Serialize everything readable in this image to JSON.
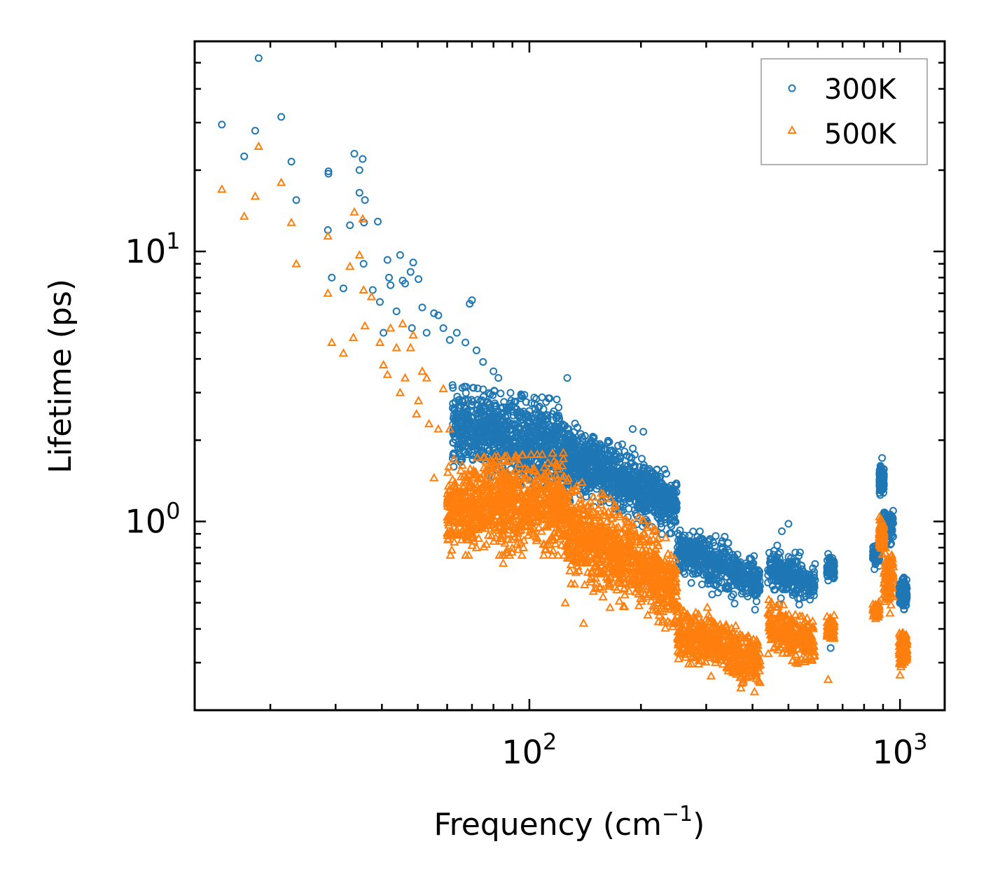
{
  "chart_data": {
    "type": "scatter",
    "xscale": "log",
    "yscale": "log",
    "xlabel": "Frequency (cm",
    "xlabel_sup": "−1",
    "xlabel_suffix": ")",
    "ylabel": "Lifetime (ps)",
    "xlim": [
      12.5,
      1320
    ],
    "ylim": [
      0.2,
      60
    ],
    "x_major_ticks": [
      {
        "value": 100,
        "base": "10",
        "exp": "2"
      },
      {
        "value": 1000,
        "base": "10",
        "exp": "3"
      }
    ],
    "y_major_ticks": [
      {
        "value": 1,
        "base": "10",
        "exp": "0"
      },
      {
        "value": 10,
        "base": "10",
        "exp": "1"
      }
    ],
    "legend_position": "top-right",
    "series": [
      {
        "name": "300K",
        "marker": "circle",
        "color": "#1f77b4",
        "outliers": [
          [
            14.8,
            29.5
          ],
          [
            17.0,
            22.5
          ],
          [
            18.2,
            28.0
          ],
          [
            18.6,
            52.0
          ],
          [
            21.4,
            31.5
          ],
          [
            22.8,
            21.5
          ],
          [
            23.5,
            15.5
          ],
          [
            28.7,
            19.8
          ],
          [
            28.7,
            19.4
          ],
          [
            28.6,
            12.0
          ],
          [
            29.3,
            8.0
          ],
          [
            31.5,
            7.3
          ],
          [
            32.8,
            12.5
          ],
          [
            33.7,
            23.0
          ],
          [
            34.8,
            20.0
          ],
          [
            34.8,
            16.5
          ],
          [
            35.5,
            22.0
          ],
          [
            36.0,
            15.5
          ],
          [
            35.8,
            12.8
          ],
          [
            35.7,
            9.0
          ],
          [
            37.8,
            7.2
          ],
          [
            39.0,
            12.9
          ],
          [
            39.5,
            6.5
          ],
          [
            40.4,
            5.0
          ],
          [
            41.4,
            9.3
          ],
          [
            41.8,
            8.0
          ],
          [
            42.2,
            7.5
          ],
          [
            43.8,
            6.0
          ],
          [
            44.8,
            9.7
          ],
          [
            45.5,
            7.8
          ],
          [
            46.2,
            7.6
          ],
          [
            47.8,
            8.4
          ],
          [
            48.6,
            9.1
          ],
          [
            48.2,
            5.2
          ],
          [
            50.2,
            7.9
          ],
          [
            51.4,
            6.2
          ],
          [
            52.8,
            5.0
          ],
          [
            55.3,
            5.9
          ],
          [
            56.8,
            5.8
          ],
          [
            58.6,
            5.2
          ],
          [
            61.0,
            4.7
          ],
          [
            63.7,
            5.0
          ],
          [
            67.2,
            4.6
          ],
          [
            69.0,
            6.4
          ],
          [
            70.0,
            6.6
          ],
          [
            72.0,
            4.3
          ],
          [
            75.0,
            3.9
          ],
          [
            80.0,
            3.6
          ],
          [
            82.5,
            3.4
          ],
          [
            126.5,
            3.4
          ],
          [
            190.0,
            2.2
          ],
          [
            203.0,
            2.15
          ],
          [
            208.0,
            1.55
          ],
          [
            228.0,
            1.3
          ],
          [
            245.0,
            1.0
          ],
          [
            480.0,
            0.92
          ],
          [
            500.0,
            0.98
          ],
          [
            650.0,
            0.34
          ]
        ],
        "clusters": [
          {
            "x": [
              62,
              125
            ],
            "y_start": [
              1.6,
              3.2
            ],
            "y_end": [
              1.2,
              2.8
            ],
            "spread": 0.44,
            "n": 950
          },
          {
            "x": [
              125,
              250
            ],
            "y_start": [
              1.2,
              2.5
            ],
            "y_end": [
              0.85,
              1.45
            ],
            "spread": 0.38,
            "n": 900
          },
          {
            "x": [
              250,
              420
            ],
            "y_start": [
              0.6,
              1.05
            ],
            "y_end": [
              0.45,
              0.75
            ],
            "spread": 0.34,
            "n": 520
          },
          {
            "x": [
              440,
              590
            ],
            "y_start": [
              0.5,
              0.88
            ],
            "y_end": [
              0.47,
              0.76
            ],
            "spread": 0.3,
            "n": 280
          },
          {
            "x": [
              635,
              665
            ],
            "y_start": [
              0.55,
              0.82
            ],
            "y_end": [
              0.55,
              0.82
            ],
            "spread": 0.25,
            "n": 80
          },
          {
            "x": [
              845,
              880
            ],
            "y_start": [
              0.62,
              0.9
            ],
            "y_end": [
              0.62,
              0.9
            ],
            "spread": 0.22,
            "n": 70
          },
          {
            "x": [
              880,
              905
            ],
            "y_start": [
              0.85,
              2.4
            ],
            "y_end": [
              0.85,
              2.4
            ],
            "spread": 0.1,
            "n": 150
          },
          {
            "x": [
              905,
              960
            ],
            "y_start": [
              0.75,
              1.25
            ],
            "y_end": [
              0.75,
              1.25
            ],
            "spread": 0.28,
            "n": 90
          },
          {
            "x": [
              995,
              1045
            ],
            "y_start": [
              0.45,
              0.65
            ],
            "y_end": [
              0.45,
              0.65
            ],
            "spread": 0.3,
            "n": 120
          }
        ]
      },
      {
        "name": "500K",
        "marker": "triangle",
        "color": "#ff7f0e",
        "outliers": [
          [
            14.8,
            17.0
          ],
          [
            17.0,
            13.5
          ],
          [
            18.2,
            16.0
          ],
          [
            18.6,
            24.5
          ],
          [
            21.4,
            18.0
          ],
          [
            22.8,
            12.8
          ],
          [
            23.5,
            9.0
          ],
          [
            28.6,
            11.4
          ],
          [
            28.6,
            7.0
          ],
          [
            29.3,
            4.6
          ],
          [
            31.5,
            4.2
          ],
          [
            32.8,
            8.8
          ],
          [
            33.7,
            14.0
          ],
          [
            34.8,
            9.7
          ],
          [
            35.5,
            13.2
          ],
          [
            35.7,
            7.2
          ],
          [
            36.0,
            5.3
          ],
          [
            37.5,
            6.8
          ],
          [
            33.5,
            4.8
          ],
          [
            39.5,
            4.6
          ],
          [
            40.4,
            3.8
          ],
          [
            41.4,
            3.5
          ],
          [
            42.2,
            5.2
          ],
          [
            43.8,
            4.4
          ],
          [
            44.8,
            3.0
          ],
          [
            45.5,
            5.4
          ],
          [
            46.2,
            3.4
          ],
          [
            47.8,
            4.4
          ],
          [
            48.6,
            4.9
          ],
          [
            49.6,
            2.5
          ],
          [
            50.2,
            2.8
          ],
          [
            51.4,
            3.6
          ],
          [
            52.8,
            3.4
          ],
          [
            53.6,
            2.3
          ],
          [
            55.3,
            1.45
          ],
          [
            56.8,
            2.2
          ],
          [
            58.6,
            3.1
          ],
          [
            61.0,
            2.2
          ],
          [
            72.0,
            0.8
          ],
          [
            85.0,
            0.7
          ],
          [
            125.0,
            0.5
          ],
          [
            140.0,
            0.42
          ],
          [
            165.0,
            0.48
          ],
          [
            640.0,
            0.26
          ],
          [
            1000.0,
            0.27
          ]
        ],
        "clusters": [
          {
            "x": [
              60,
              125
            ],
            "y_start": [
              0.75,
              1.7
            ],
            "y_end": [
              0.75,
              1.8
            ],
            "spread": 0.44,
            "n": 950
          },
          {
            "x": [
              125,
              250
            ],
            "y_start": [
              0.6,
              1.5
            ],
            "y_end": [
              0.38,
              0.8
            ],
            "spread": 0.4,
            "n": 900
          },
          {
            "x": [
              250,
              420
            ],
            "y_start": [
              0.28,
              0.55
            ],
            "y_end": [
              0.23,
              0.38
            ],
            "spread": 0.34,
            "n": 520
          },
          {
            "x": [
              440,
              590
            ],
            "y_start": [
              0.3,
              0.6
            ],
            "y_end": [
              0.26,
              0.45
            ],
            "spread": 0.3,
            "n": 280
          },
          {
            "x": [
              635,
              665
            ],
            "y_start": [
              0.33,
              0.48
            ],
            "y_end": [
              0.33,
              0.48
            ],
            "spread": 0.25,
            "n": 80
          },
          {
            "x": [
              845,
              880
            ],
            "y_start": [
              0.4,
              0.56
            ],
            "y_end": [
              0.4,
              0.56
            ],
            "spread": 0.22,
            "n": 70
          },
          {
            "x": [
              880,
              905
            ],
            "y_start": [
              0.5,
              1.55
            ],
            "y_end": [
              0.5,
              1.55
            ],
            "spread": 0.1,
            "n": 150
          },
          {
            "x": [
              905,
              960
            ],
            "y_start": [
              0.42,
              0.92
            ],
            "y_end": [
              0.42,
              0.92
            ],
            "spread": 0.28,
            "n": 90
          },
          {
            "x": [
              995,
              1045
            ],
            "y_start": [
              0.27,
              0.42
            ],
            "y_end": [
              0.27,
              0.42
            ],
            "spread": 0.3,
            "n": 120
          }
        ]
      }
    ]
  }
}
